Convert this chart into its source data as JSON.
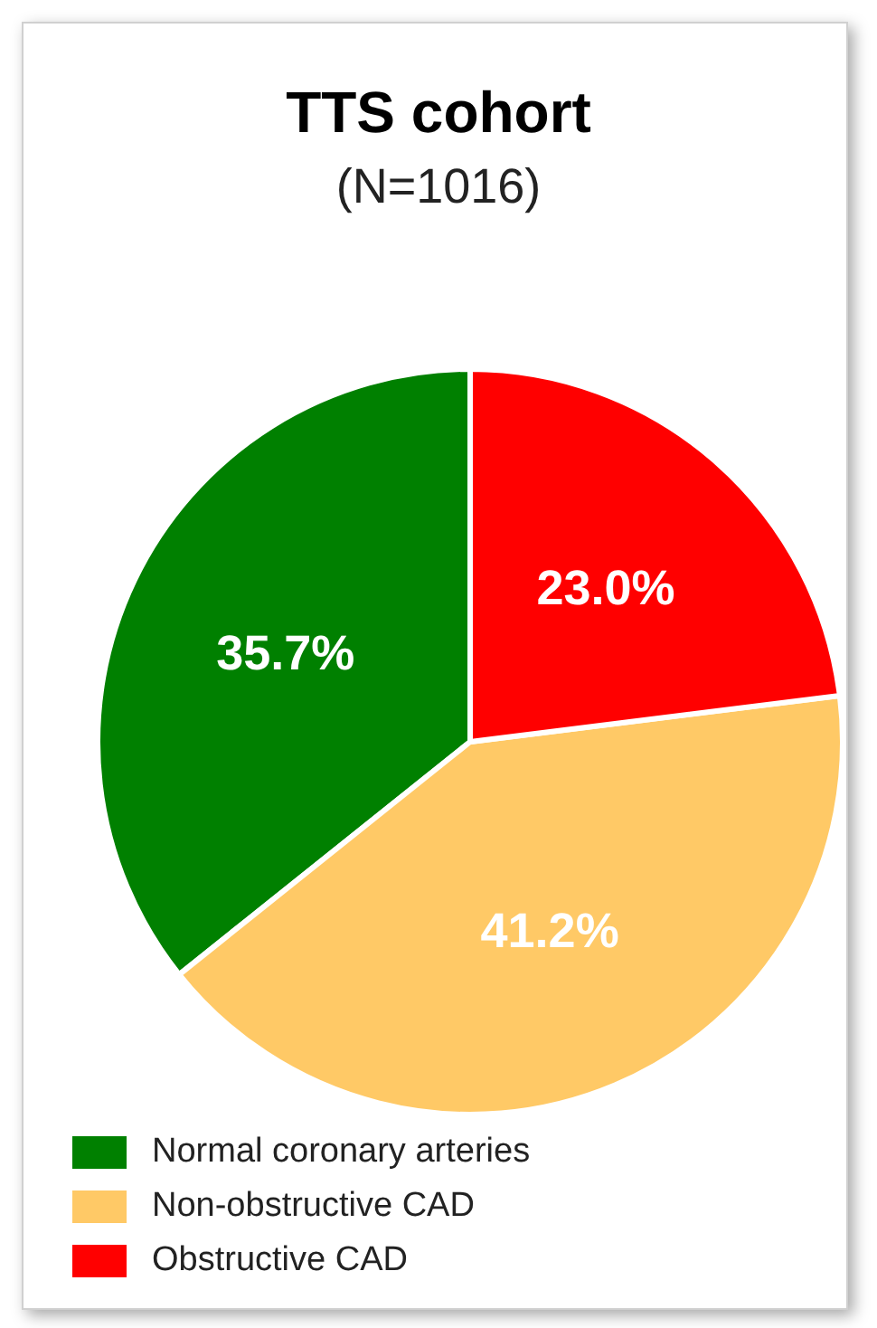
{
  "chart_data": {
    "type": "pie",
    "title": "TTS cohort",
    "subtitle": "(N=1016)",
    "categories": [
      "Normal coronary arteries",
      "Non-obstructive CAD",
      "Obstructive CAD"
    ],
    "values": [
      35.7,
      41.2,
      23.0
    ],
    "colors": [
      "#008000",
      "#ffc966",
      "#ff0000"
    ],
    "value_labels": [
      "35.7%",
      "41.2%",
      "23.0%"
    ],
    "legend": "bottom"
  }
}
